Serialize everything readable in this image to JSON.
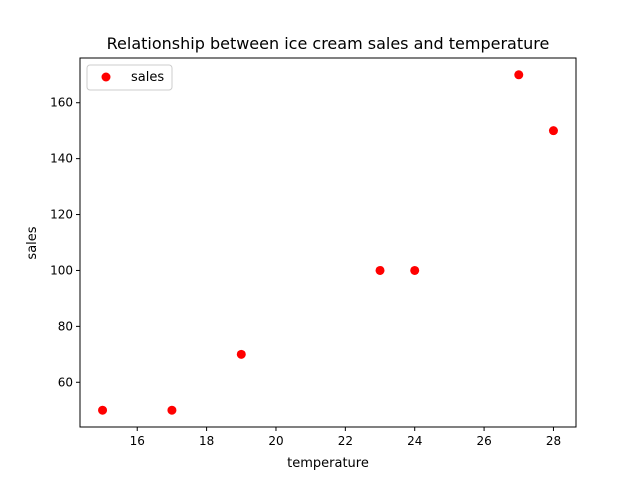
{
  "chart_data": {
    "type": "scatter",
    "title": "Relationship between ice cream sales and temperature",
    "xlabel": "temperature",
    "ylabel": "sales",
    "xlim": [
      14.35,
      28.65
    ],
    "ylim": [
      44,
      176
    ],
    "xticks": [
      16,
      18,
      20,
      22,
      24,
      26,
      28
    ],
    "yticks": [
      60,
      80,
      100,
      120,
      140,
      160
    ],
    "grid": false,
    "legend": {
      "position": "top-left"
    },
    "series": [
      {
        "name": "sales",
        "color": "#ff0000",
        "x": [
          15,
          17,
          19,
          23,
          24,
          27,
          28
        ],
        "y": [
          50,
          50,
          70,
          100,
          100,
          170,
          150
        ]
      }
    ]
  }
}
